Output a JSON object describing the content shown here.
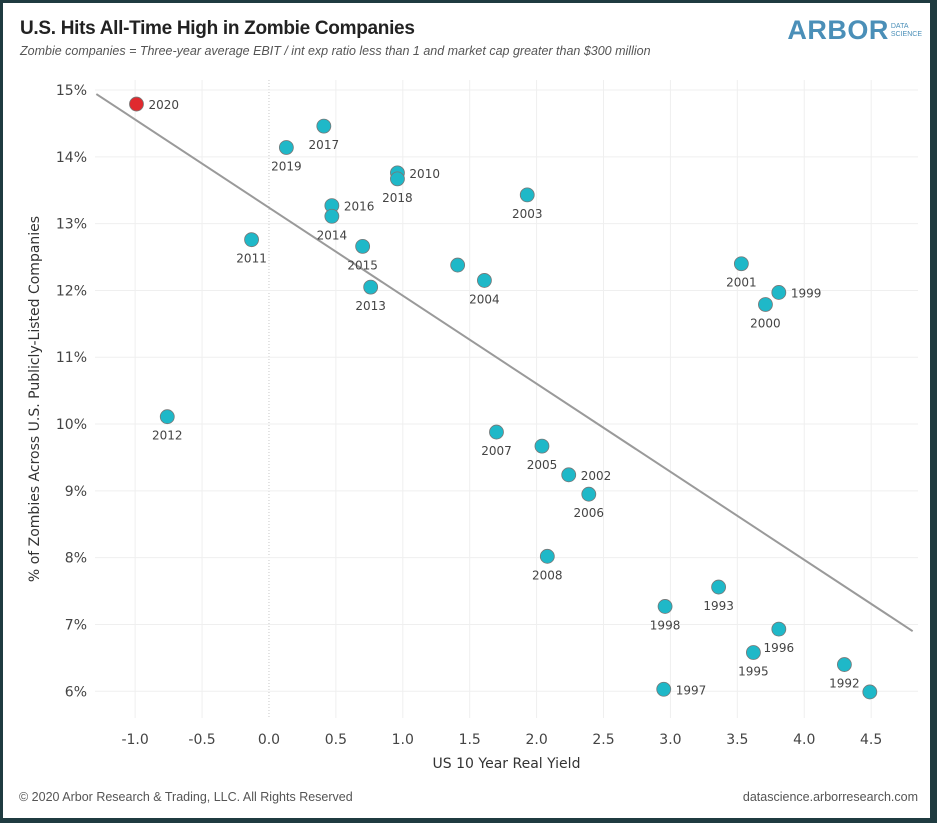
{
  "header": {
    "title": "U.S. Hits All-Time High in Zombie Companies",
    "subtitle": "Zombie companies = Three-year average EBIT / int exp ratio less than 1 and market cap greater than $300 million",
    "logo_main": "ARBOR",
    "logo_sub1": "DATA",
    "logo_sub2": "SCIENCE"
  },
  "footer": {
    "copyright": "© 2020 Arbor Research & Trading, LLC. All Rights Reserved",
    "website": "datascience.arborresearch.com"
  },
  "colors": {
    "point": "#1fb8c8",
    "highlight": "#e02a2f",
    "trend": "#9a9a9a",
    "grid": "#efefef"
  },
  "chart_data": {
    "type": "scatter",
    "title": "U.S. Hits All-Time High in Zombie Companies",
    "xlabel": "US 10 Year Real Yield",
    "ylabel": "% of Zombies Across U.S. Publicly-Listed Companies",
    "xlim": [
      -1.3,
      4.85
    ],
    "ylim": [
      5.6,
      15.15
    ],
    "xticks": [
      -1.0,
      -0.5,
      0.0,
      0.5,
      1.0,
      1.5,
      2.0,
      2.5,
      3.0,
      3.5,
      4.0,
      4.5
    ],
    "xtick_labels": [
      "-1.0",
      "-0.5",
      "0.0",
      "0.5",
      "1.0",
      "1.5",
      "2.0",
      "2.5",
      "3.0",
      "3.5",
      "4.0",
      "4.5"
    ],
    "yticks": [
      6,
      7,
      8,
      9,
      10,
      11,
      12,
      13,
      14,
      15
    ],
    "ytick_labels": [
      "6%",
      "7%",
      "8%",
      "9%",
      "10%",
      "11%",
      "12%",
      "13%",
      "14%",
      "15%"
    ],
    "grid": true,
    "points": [
      {
        "label": "2020",
        "x": -0.99,
        "y": 14.79,
        "highlight": true,
        "label_pos": "right"
      },
      {
        "label": "2019",
        "x": 0.13,
        "y": 14.14,
        "label_pos": "below"
      },
      {
        "label": "2017",
        "x": 0.41,
        "y": 14.46,
        "label_pos": "below"
      },
      {
        "label": "2010",
        "x": 0.96,
        "y": 13.76,
        "label_pos": "right"
      },
      {
        "label": "2018",
        "x": 0.96,
        "y": 13.67,
        "label_pos": "below"
      },
      {
        "label": "2016",
        "x": 0.47,
        "y": 13.27,
        "label_pos": "right"
      },
      {
        "label": "2014",
        "x": 0.47,
        "y": 13.11,
        "label_pos": "below"
      },
      {
        "label": "2003",
        "x": 1.93,
        "y": 13.43,
        "label_pos": "below"
      },
      {
        "label": "2011",
        "x": -0.13,
        "y": 12.76,
        "label_pos": "below"
      },
      {
        "label": "2015",
        "x": 0.7,
        "y": 12.66,
        "label_pos": "below"
      },
      {
        "label": "",
        "x": 1.41,
        "y": 12.38,
        "label_pos": "none"
      },
      {
        "label": "2004",
        "x": 1.61,
        "y": 12.15,
        "label_pos": "below"
      },
      {
        "label": "2013",
        "x": 0.76,
        "y": 12.05,
        "label_pos": "below"
      },
      {
        "label": "2001",
        "x": 3.53,
        "y": 12.4,
        "label_pos": "below"
      },
      {
        "label": "1999",
        "x": 3.81,
        "y": 11.97,
        "label_pos": "right"
      },
      {
        "label": "2000",
        "x": 3.71,
        "y": 11.79,
        "label_pos": "below"
      },
      {
        "label": "2012",
        "x": -0.76,
        "y": 10.11,
        "label_pos": "below"
      },
      {
        "label": "2007",
        "x": 1.7,
        "y": 9.88,
        "label_pos": "below"
      },
      {
        "label": "2005",
        "x": 2.04,
        "y": 9.67,
        "label_pos": "below"
      },
      {
        "label": "2002",
        "x": 2.24,
        "y": 9.24,
        "label_pos": "right"
      },
      {
        "label": "2006",
        "x": 2.39,
        "y": 8.95,
        "label_pos": "below"
      },
      {
        "label": "2008",
        "x": 2.08,
        "y": 8.02,
        "label_pos": "below"
      },
      {
        "label": "1993",
        "x": 3.36,
        "y": 7.56,
        "label_pos": "below"
      },
      {
        "label": "1998",
        "x": 2.96,
        "y": 7.27,
        "label_pos": "below"
      },
      {
        "label": "1996",
        "x": 3.81,
        "y": 6.93,
        "label_pos": "below"
      },
      {
        "label": "1995",
        "x": 3.62,
        "y": 6.58,
        "label_pos": "below"
      },
      {
        "label": "1992",
        "x": 4.3,
        "y": 6.4,
        "label_pos": "below"
      },
      {
        "label": "1997",
        "x": 2.95,
        "y": 6.03,
        "label_pos": "right"
      },
      {
        "label": "",
        "x": 4.49,
        "y": 5.99,
        "label_pos": "none"
      }
    ],
    "trendline": {
      "x": [
        -1.29,
        4.81
      ],
      "y": [
        14.94,
        6.9
      ]
    }
  }
}
